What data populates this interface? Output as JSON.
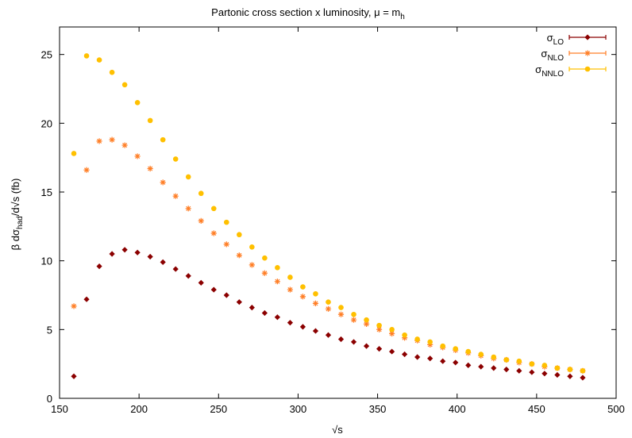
{
  "chart_data": {
    "type": "scatter",
    "title": {
      "text": "Partonic cross section x luminosity, μ = m",
      "sub": "h"
    },
    "xlabel": "√s",
    "ylabel": {
      "pre": "β dσ",
      "sub": "had",
      "post": "/d√s (fb)"
    },
    "xlim": [
      150,
      500
    ],
    "ylim": [
      0,
      27
    ],
    "xticks": [
      150,
      200,
      250,
      300,
      350,
      400,
      450,
      500
    ],
    "yticks": [
      0,
      5,
      10,
      15,
      20,
      25
    ],
    "grid": false,
    "legend_position": "top-right",
    "series": [
      {
        "name": "σLO",
        "label_main": "σ",
        "label_sub": "LO",
        "color": "#8b0000",
        "marker": "diamond",
        "x": [
          159,
          167,
          175,
          183,
          191,
          199,
          207,
          215,
          223,
          231,
          239,
          247,
          255,
          263,
          271,
          279,
          287,
          295,
          303,
          311,
          319,
          327,
          335,
          343,
          351,
          359,
          367,
          375,
          383,
          391,
          399,
          407,
          415,
          423,
          431,
          439,
          447,
          455,
          463,
          471,
          479
        ],
        "y": [
          1.6,
          7.2,
          9.6,
          10.5,
          10.8,
          10.6,
          10.3,
          9.9,
          9.4,
          8.9,
          8.4,
          7.9,
          7.5,
          7.0,
          6.6,
          6.2,
          5.9,
          5.5,
          5.2,
          4.9,
          4.6,
          4.3,
          4.1,
          3.8,
          3.6,
          3.4,
          3.2,
          3.0,
          2.9,
          2.7,
          2.6,
          2.4,
          2.3,
          2.2,
          2.1,
          2.0,
          1.9,
          1.8,
          1.7,
          1.6,
          1.5
        ]
      },
      {
        "name": "σNLO",
        "label_main": "σ",
        "label_sub": "NLO",
        "color": "#ff7f27",
        "marker": "asterisk",
        "x": [
          159,
          167,
          175,
          183,
          191,
          199,
          207,
          215,
          223,
          231,
          239,
          247,
          255,
          263,
          271,
          279,
          287,
          295,
          303,
          311,
          319,
          327,
          335,
          343,
          351,
          359,
          367,
          375,
          383,
          391,
          399,
          407,
          415,
          423,
          431,
          439,
          447,
          455,
          463,
          471,
          479
        ],
        "y": [
          6.7,
          16.6,
          18.7,
          18.8,
          18.4,
          17.6,
          16.7,
          15.7,
          14.7,
          13.8,
          12.9,
          12.0,
          11.2,
          10.4,
          9.7,
          9.1,
          8.5,
          7.9,
          7.4,
          6.9,
          6.5,
          6.1,
          5.7,
          5.4,
          5.0,
          4.7,
          4.4,
          4.2,
          3.9,
          3.7,
          3.5,
          3.3,
          3.1,
          2.9,
          2.8,
          2.6,
          2.5,
          2.3,
          2.2,
          2.1,
          2.0
        ]
      },
      {
        "name": "σNNLO",
        "label_main": "σ",
        "label_sub": "NNLO",
        "color": "#ffc000",
        "marker": "circle",
        "x": [
          159,
          167,
          175,
          183,
          191,
          199,
          207,
          215,
          223,
          231,
          239,
          247,
          255,
          263,
          271,
          279,
          287,
          295,
          303,
          311,
          319,
          327,
          335,
          343,
          351,
          359,
          367,
          375,
          383,
          391,
          399,
          407,
          415,
          423,
          431,
          439,
          447,
          455,
          463,
          471,
          479
        ],
        "y": [
          17.8,
          24.9,
          24.6,
          23.7,
          22.8,
          21.5,
          20.2,
          18.8,
          17.4,
          16.1,
          14.9,
          13.8,
          12.8,
          11.9,
          11.0,
          10.2,
          9.5,
          8.8,
          8.1,
          7.6,
          7.0,
          6.6,
          6.1,
          5.7,
          5.3,
          5.0,
          4.6,
          4.3,
          4.1,
          3.8,
          3.6,
          3.4,
          3.2,
          3.0,
          2.8,
          2.7,
          2.5,
          2.4,
          2.2,
          2.1,
          2.0
        ]
      }
    ]
  }
}
